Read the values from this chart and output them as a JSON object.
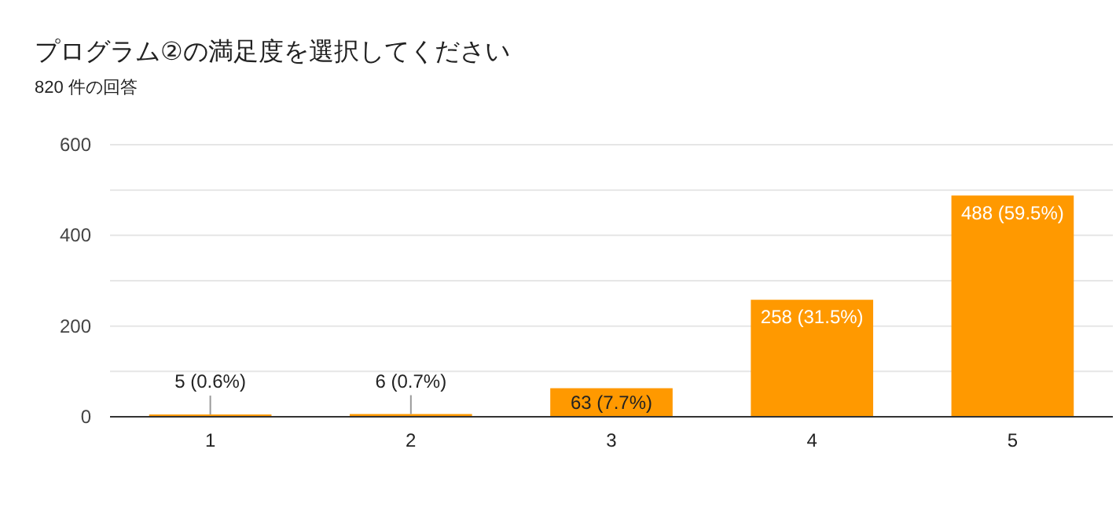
{
  "chart_data": {
    "type": "bar",
    "title": "プログラム②の満足度を選択してください",
    "subtitle": "820 件の回答",
    "categories": [
      "1",
      "2",
      "3",
      "4",
      "5"
    ],
    "values": [
      5,
      6,
      63,
      258,
      488
    ],
    "value_labels": [
      "5 (0.6%)",
      "6 (0.7%)",
      "63 (7.7%)",
      "258 (31.5%)",
      "488 (59.5%)"
    ],
    "color": "#ff9900",
    "ylim": [
      0,
      600
    ],
    "yticks": [
      0,
      {
        "value": 100,
        "label": null
      },
      200,
      {
        "value": 300,
        "label": null
      },
      400,
      {
        "value": 500,
        "label": null
      },
      600
    ],
    "grid": "y"
  }
}
